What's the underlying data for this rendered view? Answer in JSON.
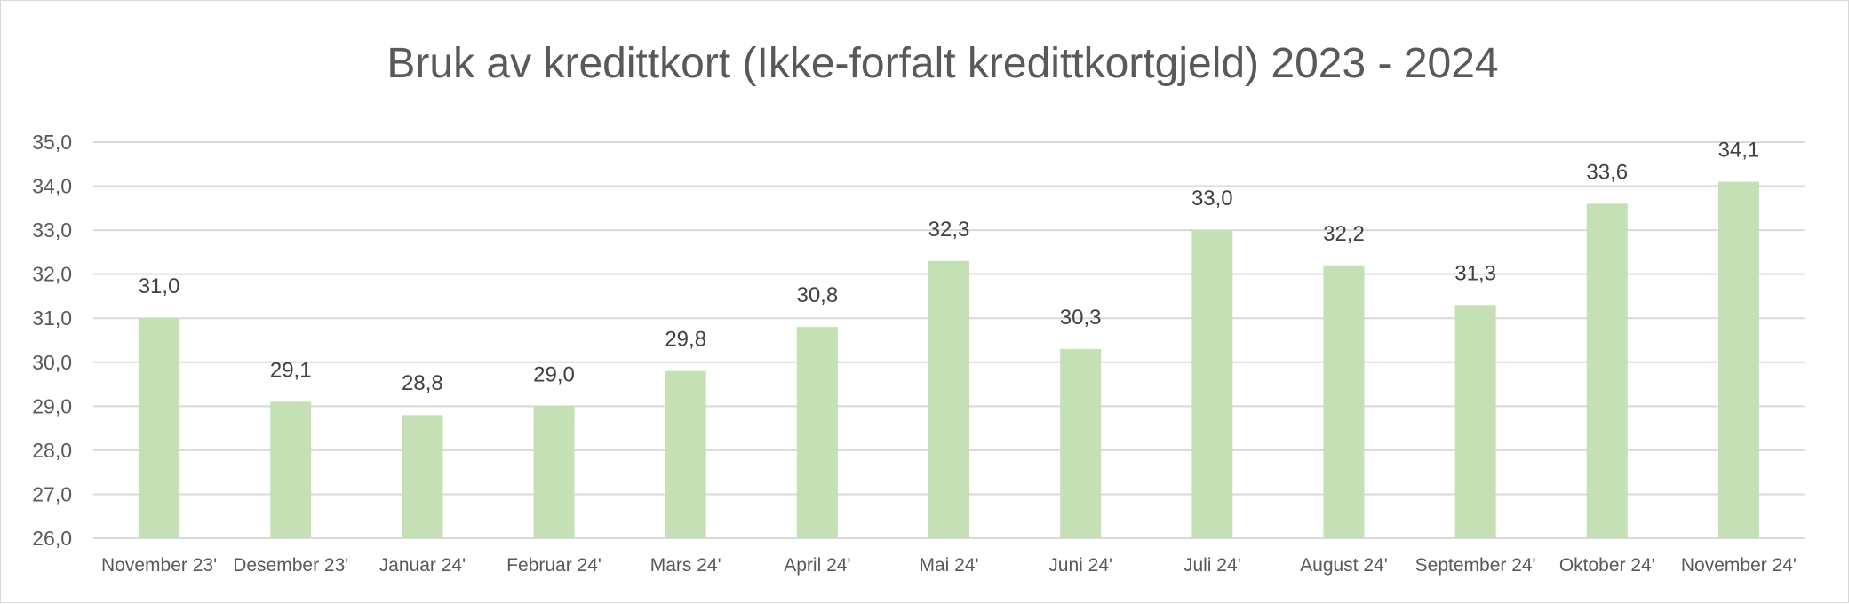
{
  "chart_data": {
    "type": "bar",
    "title": "Bruk av kredittkort (Ikke-forfalt kredittkortgjeld) 2023 - 2024",
    "xlabel": "",
    "ylabel": "",
    "ylim": [
      26,
      35
    ],
    "ytick_step": 1,
    "ytick_labels": [
      "26,0",
      "27,0",
      "28,0",
      "29,0",
      "30,0",
      "31,0",
      "32,0",
      "33,0",
      "34,0",
      "35,0"
    ],
    "grid": true,
    "legend": "none",
    "bar_color": "#c5e0b4",
    "categories": [
      "November 23'",
      "Desember 23'",
      "Januar 24'",
      "Februar 24'",
      "Mars 24'",
      "April 24'",
      "Mai 24'",
      "Juni 24'",
      "Juli 24'",
      "August 24'",
      "September 24'",
      "Oktober 24'",
      "November 24'"
    ],
    "values": [
      31.0,
      29.1,
      28.8,
      29.0,
      29.8,
      30.8,
      32.3,
      30.3,
      33.0,
      32.2,
      31.3,
      33.6,
      34.1
    ],
    "value_labels": [
      "31,0",
      "29,1",
      "28,8",
      "29,0",
      "29,8",
      "30,8",
      "32,3",
      "30,3",
      "33,0",
      "32,2",
      "31,3",
      "33,6",
      "34,1"
    ]
  }
}
